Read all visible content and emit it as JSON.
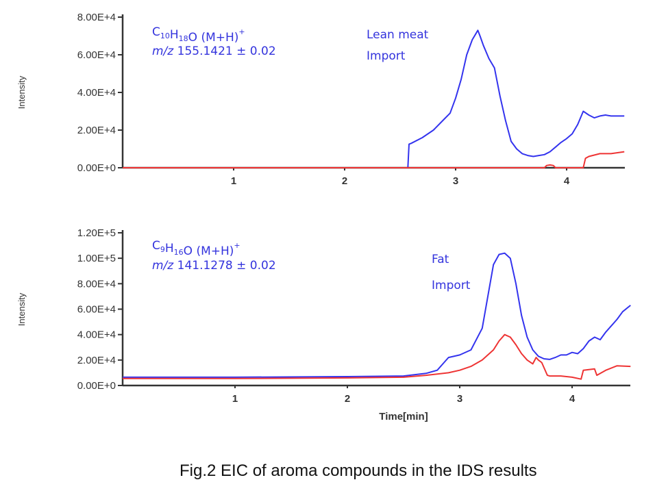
{
  "caption": "Fig.2  EIC of aroma compounds in the IDS results",
  "colors": {
    "sample": "#3333ee",
    "reference": "#ee3333",
    "axis": "#333333",
    "annotation": "#3333dd"
  },
  "chart_data": [
    {
      "type": "line",
      "title": "",
      "xlabel": "",
      "ylabel": "Intensity",
      "xlim": [
        0,
        4.52
      ],
      "ylim": [
        0,
        80000
      ],
      "x_ticks": [
        "1",
        "2",
        "3",
        "4"
      ],
      "y_ticks": [
        "0.00E+0",
        "2.00E+4",
        "4.00E+4",
        "6.00E+4",
        "8.00E+4"
      ],
      "annotation": {
        "formula_prefix": "C",
        "formula_sub1": "10",
        "formula_mid": "H",
        "formula_sub2": "18",
        "formula_suffix": "O (M+H)",
        "formula_sup": "+",
        "mz_label": "m/z",
        "mz_value": "155.1421",
        "tolerance": "± 0.02",
        "sample_line1": "Lean meat",
        "sample_line2": "Import"
      },
      "series": [
        {
          "name": "blue",
          "color": "#3333ee",
          "x": [
            0,
            2.57,
            2.58,
            2.6,
            2.7,
            2.8,
            2.9,
            2.95,
            3.0,
            3.05,
            3.1,
            3.15,
            3.18,
            3.2,
            3.22,
            3.25,
            3.3,
            3.35,
            3.4,
            3.45,
            3.5,
            3.55,
            3.6,
            3.65,
            3.7,
            3.75,
            3.8,
            3.85,
            3.9,
            3.95,
            4.0,
            4.05,
            4.1,
            4.15,
            4.2,
            4.25,
            4.3,
            4.35,
            4.4,
            4.45,
            4.52
          ],
          "y": [
            0,
            0,
            12500,
            13000,
            16000,
            20000,
            26000,
            29000,
            37000,
            47000,
            60000,
            68000,
            71000,
            73000,
            70000,
            65000,
            58000,
            53000,
            38000,
            25000,
            14000,
            10000,
            7500,
            6500,
            6000,
            6500,
            7000,
            8500,
            11000,
            13500,
            15500,
            18000,
            23000,
            30000,
            28000,
            26500,
            27500,
            28000,
            27500,
            27500,
            27500
          ]
        },
        {
          "name": "red",
          "color": "#ee3333",
          "x": [
            0,
            3.8,
            3.82,
            3.85,
            3.88,
            3.9,
            4.15,
            4.17,
            4.2,
            4.3,
            4.4,
            4.52
          ],
          "y": [
            0,
            0,
            1200,
            1500,
            1200,
            0,
            0,
            5000,
            6000,
            7500,
            7500,
            8500
          ]
        }
      ]
    },
    {
      "type": "line",
      "title": "",
      "xlabel": "Time[min]",
      "ylabel": "Intensity",
      "xlim": [
        0,
        4.52
      ],
      "ylim": [
        0,
        120000
      ],
      "x_ticks": [
        "1",
        "2",
        "3",
        "4"
      ],
      "y_ticks": [
        "0.00E+0",
        "2.00E+4",
        "4.00E+4",
        "6.00E+4",
        "8.00E+4",
        "1.00E+5",
        "1.20E+5"
      ],
      "annotation": {
        "formula_prefix": "C",
        "formula_sub1": "9",
        "formula_mid": "H",
        "formula_sub2": "16",
        "formula_suffix": "O (M+H)",
        "formula_sup": "+",
        "mz_label": "m/z",
        "mz_value": "141.1278",
        "tolerance": "± 0.02",
        "sample_line1": "Fat",
        "sample_line2": "Import"
      },
      "series": [
        {
          "name": "blue",
          "color": "#3333ee",
          "x": [
            0,
            1,
            2,
            2.5,
            2.7,
            2.8,
            2.85,
            2.9,
            3.0,
            3.1,
            3.2,
            3.25,
            3.3,
            3.35,
            3.4,
            3.45,
            3.5,
            3.55,
            3.6,
            3.65,
            3.7,
            3.75,
            3.8,
            3.85,
            3.9,
            3.95,
            4.0,
            4.05,
            4.1,
            4.15,
            4.2,
            4.25,
            4.3,
            4.35,
            4.4,
            4.45,
            4.52
          ],
          "y": [
            6500,
            6500,
            7000,
            7500,
            9500,
            12000,
            17000,
            22000,
            24000,
            28000,
            45000,
            70000,
            95000,
            103000,
            104000,
            100000,
            80000,
            55000,
            38000,
            28000,
            23000,
            21000,
            20500,
            22000,
            24000,
            24000,
            26000,
            25000,
            29000,
            35000,
            38000,
            36000,
            42000,
            47000,
            52000,
            58000,
            63000
          ]
        },
        {
          "name": "red",
          "color": "#ee3333",
          "x": [
            0,
            1,
            2,
            2.5,
            2.7,
            2.9,
            3.0,
            3.1,
            3.2,
            3.3,
            3.35,
            3.4,
            3.45,
            3.5,
            3.55,
            3.6,
            3.65,
            3.68,
            3.7,
            3.73,
            3.78,
            3.8,
            3.9,
            4.0,
            4.08,
            4.1,
            4.15,
            4.2,
            4.22,
            4.3,
            4.4,
            4.52
          ],
          "y": [
            5500,
            5500,
            6000,
            6500,
            8000,
            10000,
            12000,
            15000,
            20000,
            28000,
            35000,
            40000,
            38000,
            32000,
            25000,
            20000,
            17000,
            22000,
            20000,
            18000,
            8000,
            7500,
            7500,
            6500,
            5000,
            12000,
            12500,
            13000,
            8000,
            12000,
            15500,
            15000
          ]
        }
      ]
    }
  ]
}
